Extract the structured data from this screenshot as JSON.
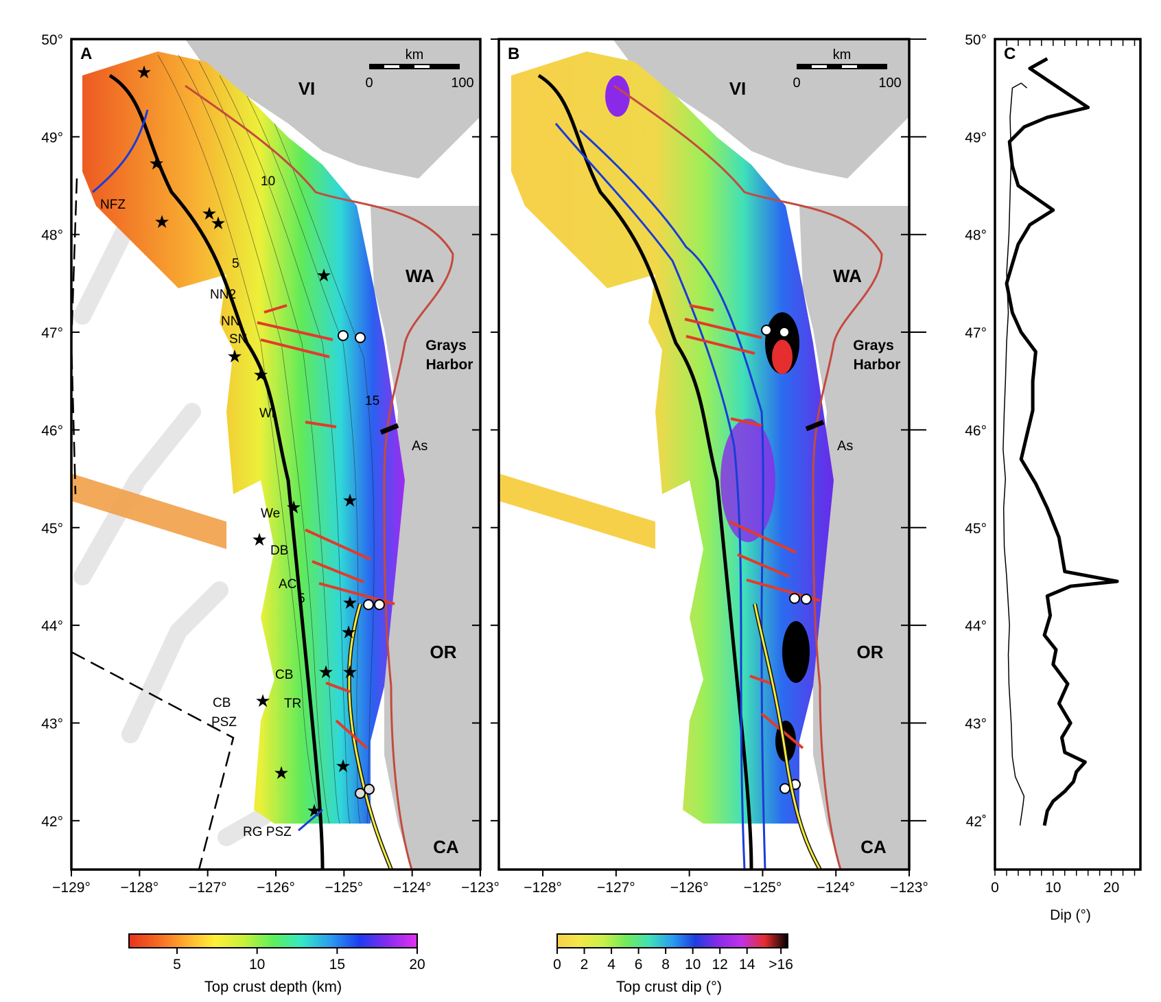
{
  "panels": [
    {
      "id": "A",
      "letter": "A",
      "lon_ticks": [
        "−129°",
        "−128°",
        "−127°",
        "−126°",
        "−125°",
        "−124°",
        "−123°"
      ]
    },
    {
      "id": "B",
      "letter": "B",
      "lon_ticks": [
        "−128°",
        "−127°",
        "−126°",
        "−125°",
        "−124°",
        "−123°"
      ]
    },
    {
      "id": "C",
      "letter": "C"
    }
  ],
  "lat_ticks_a": [
    "50°",
    "49°",
    "48°",
    "47°",
    "46°",
    "45°",
    "44°",
    "43°",
    "42°"
  ],
  "lat_ticks_c": [
    "50°",
    "49°",
    "48°",
    "47°",
    "46°",
    "45°",
    "44°",
    "43°",
    "42˚"
  ],
  "scale_bar": {
    "unit": "km",
    "start": "0",
    "end": "100"
  },
  "place_labels": {
    "vi": "VI",
    "wa": "WA",
    "or": "OR",
    "ca": "CA",
    "grays_1": "Grays",
    "grays_2": "Harbor",
    "as": "As"
  },
  "feature_labels": {
    "nfz": "NFZ",
    "nn2": "NN2",
    "nn": "NN",
    "sn": "SN",
    "wi": "Wi",
    "we": "We",
    "db": "DB",
    "ac": "AC",
    "cb": "CB",
    "tr": "TR",
    "cb_psz_1": "CB",
    "cb_psz_2": "PSZ",
    "rg_psz": "RG PSZ",
    "c5a": "5",
    "c10": "10",
    "c15": "15",
    "c5b": "5"
  },
  "colorbar_depth": {
    "label": "Top crust depth (km)",
    "ticks": [
      "5",
      "10",
      "15",
      "20"
    ],
    "colors": [
      "#e8321e",
      "#f46a22",
      "#ffb030",
      "#fff03a",
      "#c8f03a",
      "#5ef05a",
      "#34e8c8",
      "#2a9cf0",
      "#1e3cf0",
      "#8a2af0",
      "#e232f0"
    ]
  },
  "colorbar_dip": {
    "label": "Top crust dip (°)",
    "ticks": [
      "0",
      "2",
      "4",
      "6",
      "8",
      "10",
      "12",
      "14",
      ">16"
    ],
    "colors": [
      "#f7d04a",
      "#f2e84a",
      "#c9f04a",
      "#72ea5a",
      "#40e0b8",
      "#2a9cf0",
      "#1e3ce0",
      "#8a2ae8",
      "#c032e8",
      "#e62e2e",
      "#000000"
    ]
  },
  "chart_data": {
    "type": "line",
    "xlabel": "Dip (°)",
    "xlim": [
      0,
      25
    ],
    "ylim": [
      41.5,
      50
    ],
    "x_ticks": [
      "0",
      "10",
      "20"
    ],
    "series": [
      {
        "style": "thick",
        "points": [
          [
            8.5,
            41.95
          ],
          [
            9,
            42.1
          ],
          [
            10,
            42.2
          ],
          [
            12,
            42.3
          ],
          [
            13.5,
            42.4
          ],
          [
            14,
            42.5
          ],
          [
            15.5,
            42.6
          ],
          [
            12,
            42.7
          ],
          [
            11.5,
            42.85
          ],
          [
            13,
            43.0
          ],
          [
            11,
            43.2
          ],
          [
            12.5,
            43.4
          ],
          [
            10,
            43.6
          ],
          [
            10.5,
            43.75
          ],
          [
            8.5,
            43.9
          ],
          [
            9.5,
            44.1
          ],
          [
            9,
            44.3
          ],
          [
            13,
            44.4
          ],
          [
            21,
            44.45
          ],
          [
            12,
            44.55
          ],
          [
            11,
            44.9
          ],
          [
            9,
            45.2
          ],
          [
            7,
            45.45
          ],
          [
            4.5,
            45.7
          ],
          [
            5.5,
            45.95
          ],
          [
            6.5,
            46.2
          ],
          [
            6.5,
            46.5
          ],
          [
            7,
            46.8
          ],
          [
            4.5,
            47.0
          ],
          [
            3,
            47.2
          ],
          [
            2,
            47.5
          ],
          [
            3,
            47.7
          ],
          [
            4,
            47.9
          ],
          [
            6,
            48.1
          ],
          [
            10,
            48.25
          ],
          [
            4,
            48.5
          ],
          [
            3,
            48.7
          ],
          [
            2.5,
            48.95
          ],
          [
            5,
            49.1
          ],
          [
            9,
            49.2
          ],
          [
            16,
            49.3
          ],
          [
            11,
            49.5
          ],
          [
            6,
            49.7
          ],
          [
            9,
            49.8
          ]
        ]
      },
      {
        "style": "thin",
        "points": [
          [
            4.3,
            41.95
          ],
          [
            4.8,
            42.15
          ],
          [
            5,
            42.25
          ],
          [
            3.5,
            42.45
          ],
          [
            3,
            42.65
          ],
          [
            2.8,
            43.0
          ],
          [
            2.4,
            43.4
          ],
          [
            2.3,
            43.7
          ],
          [
            2.5,
            44.0
          ],
          [
            2.2,
            44.3
          ],
          [
            2.0,
            44.5
          ],
          [
            1.6,
            44.8
          ],
          [
            1.5,
            45.2
          ],
          [
            1.8,
            45.5
          ],
          [
            1.4,
            45.8
          ],
          [
            1.6,
            46.2
          ],
          [
            1.8,
            46.5
          ],
          [
            2.0,
            46.9
          ],
          [
            2.3,
            47.2
          ],
          [
            2.0,
            47.6
          ],
          [
            2.4,
            48.0
          ],
          [
            2.6,
            48.4
          ],
          [
            2.8,
            48.8
          ],
          [
            2.6,
            49.2
          ],
          [
            3.0,
            49.5
          ],
          [
            4.5,
            49.55
          ],
          [
            5.5,
            49.5
          ]
        ]
      }
    ]
  }
}
